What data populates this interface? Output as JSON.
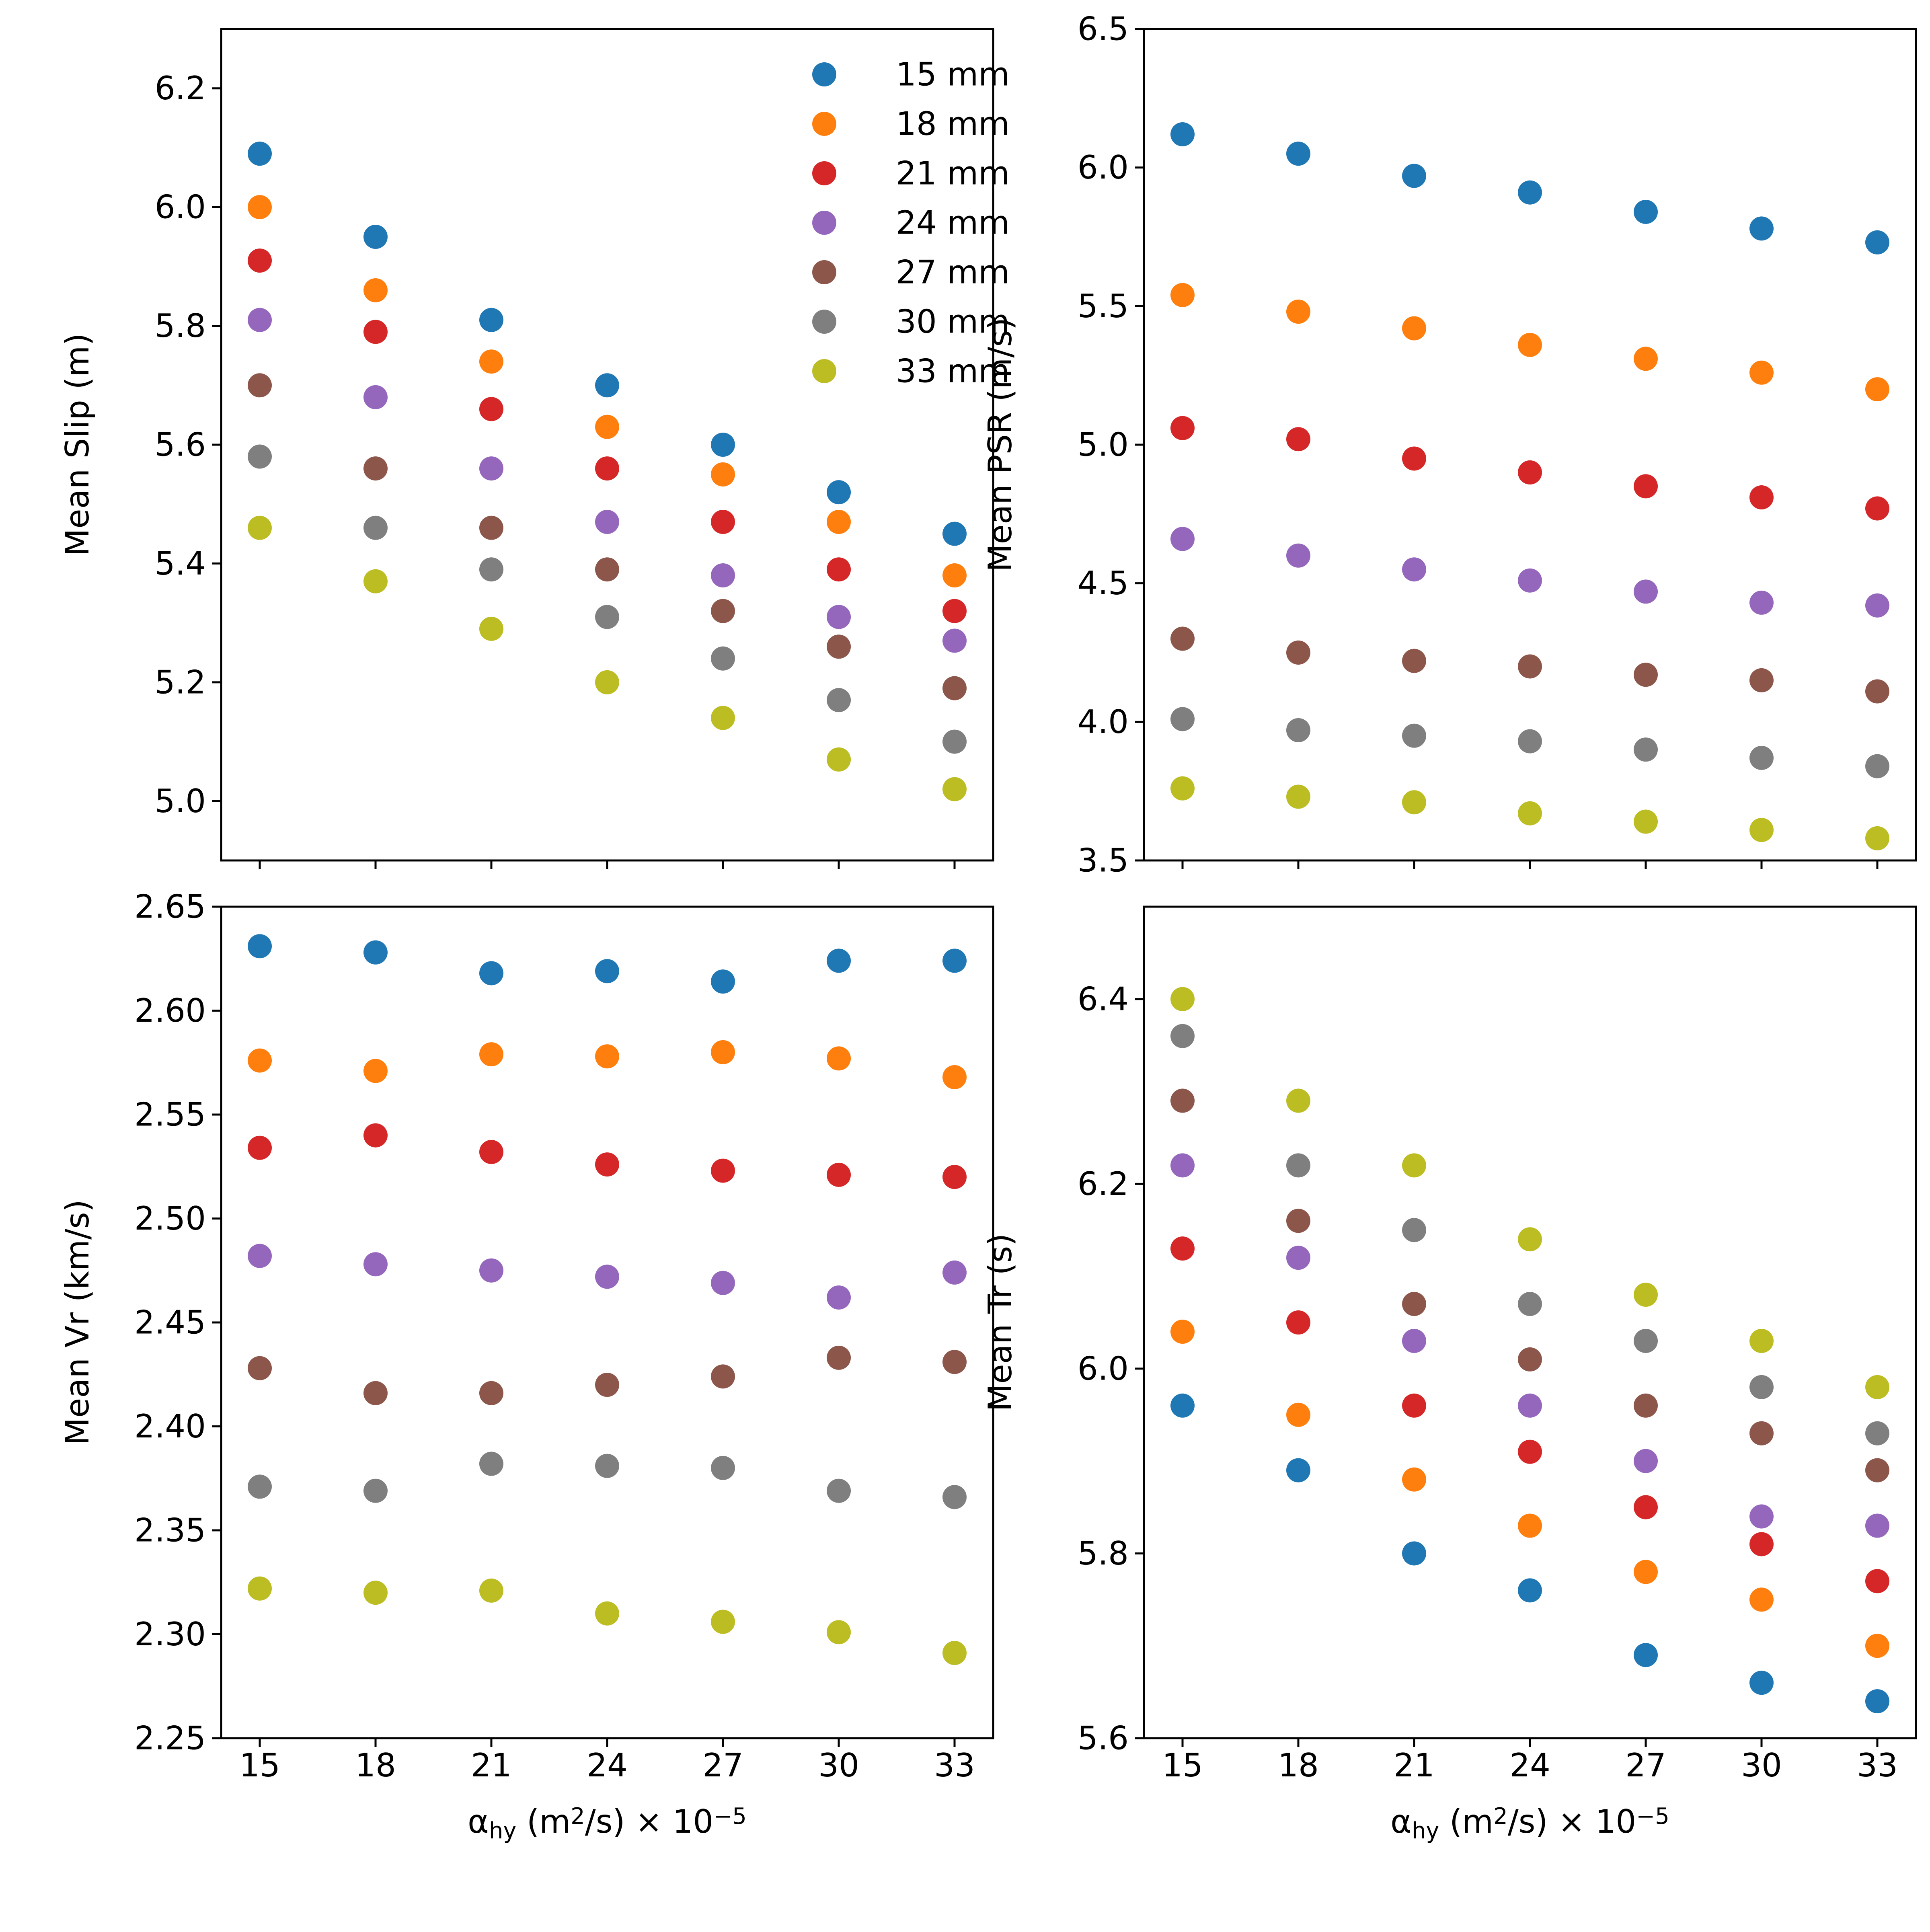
{
  "chart_data": [
    {
      "type": "scatter",
      "panel": "top-left",
      "ylabel": "Mean Slip (m)",
      "xlabel": "",
      "ylim": [
        4.9,
        6.3
      ],
      "yticks": [
        5.0,
        5.2,
        5.4,
        5.6,
        5.8,
        6.0,
        6.2
      ],
      "ytick_labels": [
        "5.0",
        "5.2",
        "5.4",
        "5.6",
        "5.8",
        "6.0",
        "6.2"
      ],
      "legend_position": "top-right",
      "show_legend": true,
      "series": [
        {
          "name": "15 mm",
          "color": "#1f77b4",
          "values": [
            6.09,
            5.95,
            5.81,
            5.7,
            5.6,
            5.52,
            5.45
          ]
        },
        {
          "name": "18 mm",
          "color": "#ff7f0e",
          "values": [
            6.0,
            5.86,
            5.74,
            5.63,
            5.55,
            5.47,
            5.38
          ]
        },
        {
          "name": "21 mm",
          "color": "#d62728",
          "values": [
            5.91,
            5.79,
            5.66,
            5.56,
            5.47,
            5.39,
            5.32
          ]
        },
        {
          "name": "24 mm",
          "color": "#9467bd",
          "values": [
            5.81,
            5.68,
            5.56,
            5.47,
            5.38,
            5.31,
            5.27
          ]
        },
        {
          "name": "27 mm",
          "color": "#8c564b",
          "values": [
            5.7,
            5.56,
            5.46,
            5.39,
            5.32,
            5.26,
            5.19
          ]
        },
        {
          "name": "30 mm",
          "color": "#7f7f7f",
          "values": [
            5.58,
            5.46,
            5.39,
            5.31,
            5.24,
            5.17,
            5.1
          ]
        },
        {
          "name": "33 mm",
          "color": "#bcbd22",
          "values": [
            5.46,
            5.37,
            5.29,
            5.2,
            5.14,
            5.07,
            5.02
          ]
        }
      ]
    },
    {
      "type": "scatter",
      "panel": "top-right",
      "ylabel": "Mean PSR (m/s)",
      "xlabel": "",
      "ylim": [
        3.5,
        6.5
      ],
      "yticks": [
        3.5,
        4.0,
        4.5,
        5.0,
        5.5,
        6.0,
        6.5
      ],
      "ytick_labels": [
        "3.5",
        "4.0",
        "4.5",
        "5.0",
        "5.5",
        "6.0",
        "6.5"
      ],
      "show_legend": false,
      "series": [
        {
          "name": "15 mm",
          "color": "#1f77b4",
          "values": [
            6.12,
            6.05,
            5.97,
            5.91,
            5.84,
            5.78,
            5.73
          ]
        },
        {
          "name": "18 mm",
          "color": "#ff7f0e",
          "values": [
            5.54,
            5.48,
            5.42,
            5.36,
            5.31,
            5.26,
            5.2
          ]
        },
        {
          "name": "21 mm",
          "color": "#d62728",
          "values": [
            5.06,
            5.02,
            4.95,
            4.9,
            4.85,
            4.81,
            4.77
          ]
        },
        {
          "name": "24 mm",
          "color": "#9467bd",
          "values": [
            4.66,
            4.6,
            4.55,
            4.51,
            4.47,
            4.43,
            4.42
          ]
        },
        {
          "name": "27 mm",
          "color": "#8c564b",
          "values": [
            4.3,
            4.25,
            4.22,
            4.2,
            4.17,
            4.15,
            4.11
          ]
        },
        {
          "name": "30 mm",
          "color": "#7f7f7f",
          "values": [
            4.01,
            3.97,
            3.95,
            3.93,
            3.9,
            3.87,
            3.84
          ]
        },
        {
          "name": "33 mm",
          "color": "#bcbd22",
          "values": [
            3.76,
            3.73,
            3.71,
            3.67,
            3.64,
            3.61,
            3.58
          ]
        }
      ]
    },
    {
      "type": "scatter",
      "panel": "bottom-left",
      "ylabel": "Mean Vr (km/s)",
      "xlabel_prefix": "α",
      "xlabel_sub": "hy",
      "xlabel_mid": " (m",
      "xlabel_sup": "2",
      "xlabel_suffix": "/s) × 10",
      "xlabel_exp": "−5",
      "ylim": [
        2.25,
        2.65
      ],
      "yticks": [
        2.25,
        2.3,
        2.35,
        2.4,
        2.45,
        2.5,
        2.55,
        2.6,
        2.65
      ],
      "ytick_labels": [
        "2.25",
        "2.30",
        "2.35",
        "2.40",
        "2.45",
        "2.50",
        "2.55",
        "2.60",
        "2.65"
      ],
      "show_legend": false,
      "series": [
        {
          "name": "15 mm",
          "color": "#1f77b4",
          "values": [
            2.631,
            2.628,
            2.618,
            2.619,
            2.614,
            2.624,
            2.624
          ]
        },
        {
          "name": "18 mm",
          "color": "#ff7f0e",
          "values": [
            2.576,
            2.571,
            2.579,
            2.578,
            2.58,
            2.577,
            2.568
          ]
        },
        {
          "name": "21 mm",
          "color": "#d62728",
          "values": [
            2.534,
            2.54,
            2.532,
            2.526,
            2.523,
            2.521,
            2.52
          ]
        },
        {
          "name": "24 mm",
          "color": "#9467bd",
          "values": [
            2.482,
            2.478,
            2.475,
            2.472,
            2.469,
            2.462,
            2.474
          ]
        },
        {
          "name": "27 mm",
          "color": "#8c564b",
          "values": [
            2.428,
            2.416,
            2.416,
            2.42,
            2.424,
            2.433,
            2.431
          ]
        },
        {
          "name": "30 mm",
          "color": "#7f7f7f",
          "values": [
            2.371,
            2.369,
            2.382,
            2.381,
            2.38,
            2.369,
            2.366
          ]
        },
        {
          "name": "33 mm",
          "color": "#bcbd22",
          "values": [
            2.322,
            2.32,
            2.321,
            2.31,
            2.306,
            2.301,
            2.291
          ]
        }
      ]
    },
    {
      "type": "scatter",
      "panel": "bottom-right",
      "ylabel": "Mean Tr (s)",
      "xlabel_prefix": "α",
      "xlabel_sub": "hy",
      "xlabel_mid": " (m",
      "xlabel_sup": "2",
      "xlabel_suffix": "/s) × 10",
      "xlabel_exp": "−5",
      "ylim": [
        5.6,
        6.5
      ],
      "yticks": [
        5.6,
        5.8,
        6.0,
        6.2,
        6.4
      ],
      "ytick_labels": [
        "5.6",
        "5.8",
        "6.0",
        "6.2",
        "6.4"
      ],
      "show_legend": false,
      "series": [
        {
          "name": "15 mm",
          "color": "#1f77b4",
          "values": [
            5.96,
            5.89,
            5.8,
            5.76,
            5.69,
            5.66,
            5.64
          ]
        },
        {
          "name": "18 mm",
          "color": "#ff7f0e",
          "values": [
            6.04,
            5.95,
            5.88,
            5.83,
            5.78,
            5.75,
            5.7
          ]
        },
        {
          "name": "21 mm",
          "color": "#d62728",
          "values": [
            6.13,
            6.05,
            5.96,
            5.91,
            5.85,
            5.81,
            5.77
          ]
        },
        {
          "name": "24 mm",
          "color": "#9467bd",
          "values": [
            6.22,
            6.12,
            6.03,
            5.96,
            5.9,
            5.84,
            5.83
          ]
        },
        {
          "name": "27 mm",
          "color": "#8c564b",
          "values": [
            6.29,
            6.16,
            6.07,
            6.01,
            5.96,
            5.93,
            5.89
          ]
        },
        {
          "name": "30 mm",
          "color": "#7f7f7f",
          "values": [
            6.36,
            6.22,
            6.15,
            6.07,
            6.03,
            5.98,
            5.93
          ]
        },
        {
          "name": "33 mm",
          "color": "#bcbd22",
          "values": [
            6.4,
            6.29,
            6.22,
            6.14,
            6.08,
            6.03,
            5.98
          ]
        }
      ]
    }
  ],
  "shared_x": {
    "values": [
      15,
      18,
      21,
      24,
      27,
      30,
      33
    ],
    "tick_labels": [
      "15",
      "18",
      "21",
      "24",
      "27",
      "30",
      "33"
    ],
    "xlim": [
      14,
      34
    ]
  }
}
